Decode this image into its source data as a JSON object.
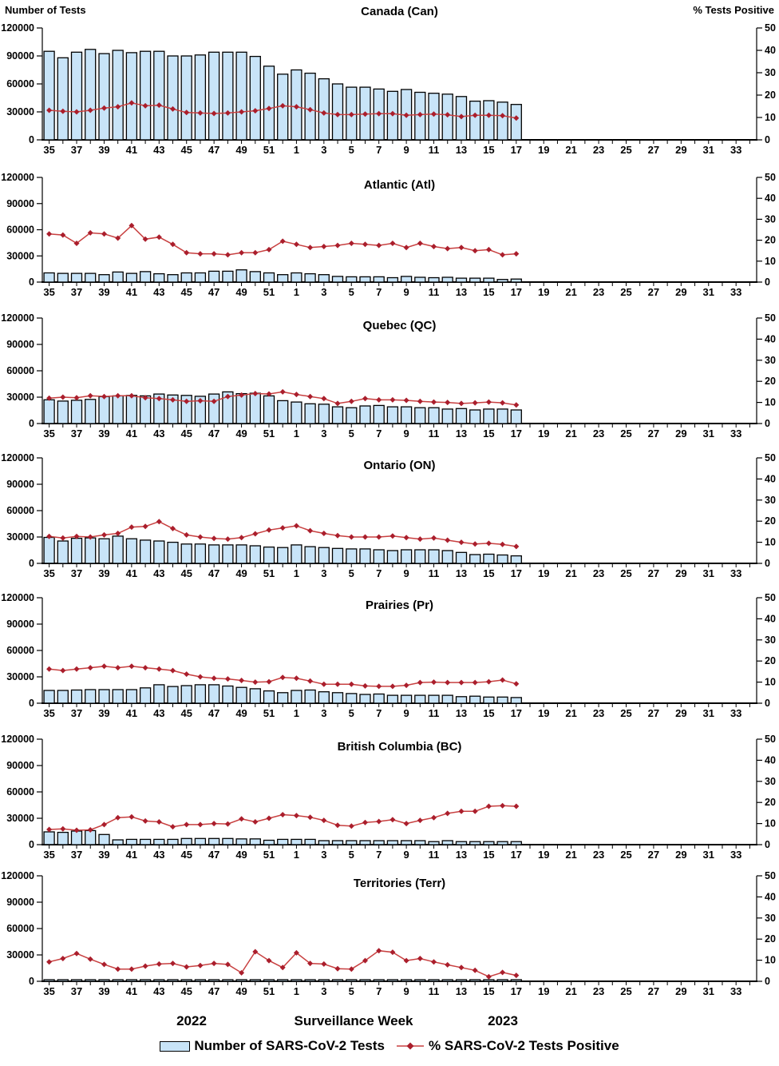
{
  "header": {
    "left_axis_title": "Number of Tests",
    "right_axis_title": "% Tests Positive"
  },
  "footer": {
    "year_left": "2022",
    "x_axis_title": "Surveillance Week",
    "year_right": "2023"
  },
  "legend": {
    "bar_label": "Number of SARS-CoV-2 Tests",
    "line_label": "% SARS-CoV-2 Tests Positive"
  },
  "colors": {
    "bar_fill": "#C8E4F8",
    "bar_stroke": "#000000",
    "line_stroke": "#C84040",
    "line_marker": "#AA1E2C",
    "axis": "#000000"
  },
  "chart_data": {
    "type": "bar+line combo, 7 stacked regional panels",
    "x": {
      "slots": 52,
      "tick_labels": [
        "35",
        "37",
        "39",
        "41",
        "43",
        "45",
        "47",
        "49",
        "51",
        "1",
        "3",
        "5",
        "7",
        "9",
        "11",
        "13",
        "15",
        "17",
        "19",
        "21",
        "23",
        "25",
        "27",
        "29",
        "31",
        "33"
      ],
      "data_weeks": "2022 week 35 through 2023 week 17 (35 points), axis continues empty to week 34"
    },
    "left_axis": {
      "label": "Number of Tests",
      "ticks": [
        0,
        30000,
        60000,
        90000,
        120000
      ],
      "max": 120000
    },
    "right_axis": {
      "label": "% Tests Positive",
      "ticks": [
        0,
        10,
        20,
        30,
        40,
        50
      ],
      "max": 50
    },
    "panels": [
      {
        "id": "can",
        "title": "Canada (Can)",
        "tests": [
          95000,
          88000,
          94000,
          97000,
          92500,
          96000,
          93500,
          95000,
          95000,
          90000,
          90000,
          91000,
          94000,
          94000,
          94000,
          89500,
          79000,
          70500,
          75000,
          71500,
          65500,
          60000,
          56500,
          56500,
          54500,
          52000,
          54000,
          51000,
          50000,
          49000,
          46500,
          41500,
          42000,
          40500,
          38000
        ],
        "pct_positive": [
          13.2,
          12.8,
          12.5,
          13.2,
          14.2,
          14.8,
          16.5,
          15.2,
          15.5,
          13.8,
          12.2,
          12.0,
          11.8,
          12.0,
          12.5,
          13.0,
          14.0,
          15.2,
          14.8,
          13.5,
          12.0,
          11.3,
          11.3,
          11.5,
          11.7,
          11.7,
          11.0,
          11.3,
          11.5,
          11.2,
          10.4,
          11.0,
          11.0,
          10.8,
          9.7
        ]
      },
      {
        "id": "atl",
        "title": "Atlantic (Atl)",
        "tests": [
          10500,
          10000,
          10000,
          10000,
          8500,
          11500,
          10000,
          12000,
          9500,
          8500,
          10500,
          10500,
          12500,
          12500,
          14000,
          12000,
          10500,
          8500,
          10500,
          9500,
          8500,
          6500,
          6000,
          6000,
          6000,
          5000,
          6500,
          5500,
          5000,
          5500,
          4500,
          4500,
          4500,
          3000,
          3500
        ],
        "pct_positive": [
          23.0,
          22.5,
          18.5,
          23.5,
          23.0,
          21.0,
          27.0,
          20.5,
          21.5,
          18.0,
          14.0,
          13.5,
          13.5,
          13.0,
          14.0,
          14.0,
          15.5,
          19.5,
          18.0,
          16.5,
          17.0,
          17.5,
          18.5,
          18.0,
          17.5,
          18.5,
          16.5,
          18.5,
          17.0,
          16.0,
          16.5,
          15.0,
          15.5,
          13.0,
          13.5
        ]
      },
      {
        "id": "qc",
        "title": "Quebec (QC)",
        "tests": [
          27000,
          25500,
          26500,
          27500,
          30500,
          31500,
          32000,
          31500,
          33500,
          32500,
          32000,
          31000,
          33500,
          36000,
          34000,
          34500,
          31500,
          26000,
          24500,
          22500,
          22000,
          19000,
          18000,
          20000,
          20500,
          19000,
          19000,
          18000,
          18000,
          16500,
          17000,
          15500,
          16500,
          16500,
          15500
        ],
        "pct_positive": [
          12.0,
          12.5,
          12.2,
          13.2,
          12.8,
          13.2,
          13.2,
          12.2,
          11.8,
          11.2,
          10.5,
          10.8,
          10.5,
          12.8,
          13.5,
          14.2,
          14.0,
          15.0,
          13.8,
          12.8,
          11.8,
          9.5,
          10.5,
          11.8,
          11.2,
          11.2,
          11.0,
          10.5,
          10.2,
          10.0,
          9.5,
          9.8,
          10.2,
          9.8,
          8.8
        ]
      },
      {
        "id": "on",
        "title": "Ontario (ON)",
        "tests": [
          29500,
          25500,
          28500,
          29000,
          28000,
          31000,
          28000,
          26500,
          25500,
          24000,
          22000,
          22000,
          21000,
          21000,
          21000,
          20000,
          18500,
          18000,
          21000,
          19000,
          18000,
          17000,
          16500,
          16500,
          15500,
          14500,
          15500,
          15500,
          15500,
          14500,
          12500,
          10000,
          10500,
          9500,
          8500
        ],
        "pct_positive": [
          12.8,
          12.0,
          12.8,
          12.5,
          13.5,
          14.2,
          17.2,
          17.5,
          19.8,
          16.5,
          13.5,
          12.5,
          11.8,
          11.5,
          12.2,
          14.0,
          15.8,
          16.8,
          17.8,
          15.5,
          14.2,
          13.2,
          12.5,
          12.5,
          12.5,
          13.0,
          12.2,
          11.5,
          12.0,
          11.0,
          10.0,
          9.2,
          9.5,
          9.0,
          8.0
        ]
      },
      {
        "id": "pr",
        "title": "Prairies (Pr)",
        "tests": [
          14500,
          14500,
          15000,
          15500,
          15500,
          15500,
          15500,
          17500,
          21000,
          19000,
          20000,
          21000,
          21000,
          19500,
          18000,
          16500,
          14000,
          12000,
          14500,
          15000,
          13000,
          12000,
          11000,
          10000,
          10500,
          9000,
          9000,
          9000,
          9000,
          9000,
          7500,
          8000,
          7000,
          7000,
          6500
        ],
        "pct_positive": [
          16.2,
          15.5,
          16.2,
          16.8,
          17.5,
          16.8,
          17.5,
          16.8,
          16.2,
          15.5,
          13.8,
          12.5,
          11.8,
          11.5,
          10.8,
          10.0,
          10.2,
          12.2,
          11.8,
          10.5,
          9.0,
          9.0,
          9.0,
          8.2,
          8.0,
          8.0,
          8.5,
          9.8,
          10.0,
          9.8,
          9.8,
          9.8,
          10.2,
          11.0,
          9.2
        ]
      },
      {
        "id": "bc",
        "title": "British Columbia (BC)",
        "tests": [
          14500,
          14000,
          15500,
          16000,
          11500,
          5500,
          6000,
          6000,
          6000,
          6000,
          7000,
          7000,
          7000,
          7000,
          6500,
          6500,
          5000,
          6000,
          6000,
          6000,
          4500,
          4500,
          4500,
          4500,
          4500,
          4500,
          4500,
          4500,
          3500,
          4500,
          3500,
          3500,
          3500,
          3500,
          3500
        ],
        "pct_positive": [
          7.2,
          7.5,
          6.8,
          7.0,
          9.5,
          12.8,
          13.2,
          11.2,
          10.8,
          8.5,
          9.5,
          9.5,
          10.0,
          9.8,
          12.2,
          10.8,
          12.5,
          14.2,
          13.8,
          13.0,
          11.5,
          9.2,
          8.8,
          10.5,
          11.0,
          11.8,
          10.0,
          11.5,
          12.8,
          14.8,
          15.8,
          15.8,
          18.2,
          18.5,
          18.2
        ]
      },
      {
        "id": "terr",
        "title": "Territories (Terr)",
        "tests": [
          700,
          650,
          600,
          650,
          600,
          550,
          600,
          600,
          650,
          600,
          550,
          600,
          600,
          550,
          500,
          600,
          550,
          500,
          600,
          550,
          500,
          500,
          450,
          500,
          550,
          500,
          450,
          500,
          450,
          400,
          400,
          350,
          300,
          350,
          300
        ],
        "pct_positive": [
          9.2,
          10.8,
          13.2,
          10.5,
          8.0,
          5.8,
          5.8,
          7.2,
          8.2,
          8.5,
          6.8,
          7.5,
          8.5,
          8.0,
          4.0,
          14.0,
          9.8,
          6.5,
          13.5,
          8.5,
          8.2,
          6.0,
          5.8,
          9.8,
          14.5,
          13.8,
          9.8,
          10.8,
          9.2,
          7.8,
          6.5,
          5.2,
          2.2,
          4.2,
          2.8
        ]
      }
    ]
  }
}
